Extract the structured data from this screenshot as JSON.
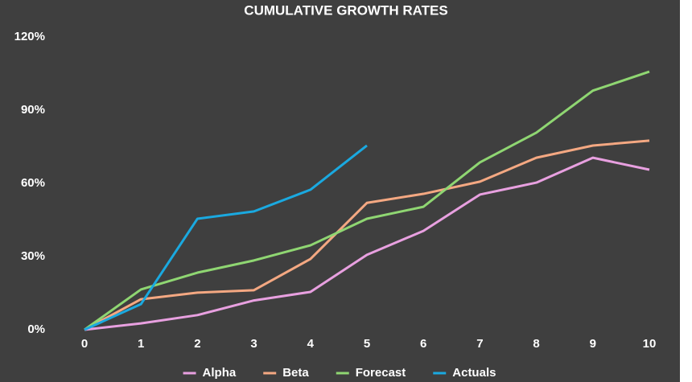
{
  "chart_data": {
    "type": "line",
    "title": "CUMULATIVE GROWTH RATES",
    "x": [
      0,
      1,
      2,
      3,
      4,
      5,
      6,
      7,
      8,
      9,
      10
    ],
    "series": [
      {
        "name": "Alpha",
        "color": "#e8a0e0",
        "values": [
          0,
          2.6,
          6,
          12,
          15.5,
          30.7,
          40.5,
          55.4,
          60.3,
          70.5,
          65.6
        ]
      },
      {
        "name": "Beta",
        "color": "#f4a882",
        "values": [
          0,
          12.5,
          15.2,
          16.2,
          29,
          52,
          55.7,
          60.7,
          70.5,
          75.5,
          77.5
        ]
      },
      {
        "name": "Forecast",
        "color": "#8fd672",
        "values": [
          0,
          16.5,
          23.4,
          28.4,
          34.6,
          45.5,
          50.4,
          68.6,
          80.8,
          98,
          105.8
        ]
      },
      {
        "name": "Actuals",
        "color": "#1aa9e0",
        "values": [
          0,
          10.5,
          45.5,
          48.5,
          57.4,
          75.5,
          null,
          null,
          null,
          null,
          null
        ]
      }
    ],
    "xlim": [
      0,
      10
    ],
    "xticks": [
      0,
      1,
      2,
      3,
      4,
      5,
      6,
      7,
      8,
      9,
      10
    ],
    "ylim": [
      0,
      120
    ],
    "yticks": [
      {
        "value": 0,
        "label": "0%"
      },
      {
        "value": 30,
        "label": "30%"
      },
      {
        "value": 60,
        "label": "60%"
      },
      {
        "value": 90,
        "label": "90%"
      },
      {
        "value": 120,
        "label": "120%"
      }
    ],
    "grid": false,
    "legend": "bottom"
  }
}
